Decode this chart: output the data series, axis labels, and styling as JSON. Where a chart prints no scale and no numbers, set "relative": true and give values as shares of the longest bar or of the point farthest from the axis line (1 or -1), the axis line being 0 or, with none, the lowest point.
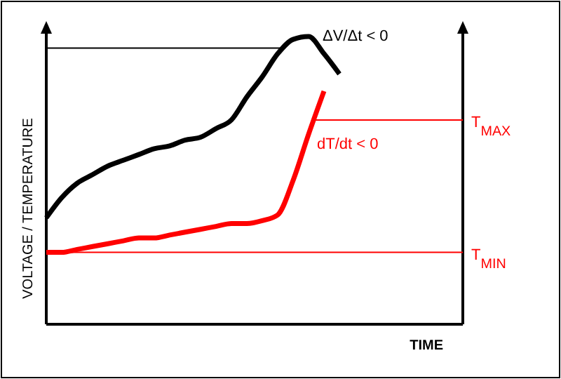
{
  "chart_data": {
    "type": "line",
    "relative": true,
    "xlabel": "TIME",
    "ylabel": "VOLTAGE / TEMPERATURE",
    "categories": [
      null,
      null,
      null,
      null,
      null,
      null,
      null,
      null,
      null,
      null,
      null,
      null,
      null,
      null,
      null,
      null,
      null,
      null,
      null,
      null,
      null,
      null,
      null,
      null,
      null,
      null,
      null,
      null
    ],
    "series": [
      {
        "color": "#000000",
        "values": [
          0.37,
          0.44,
          0.49,
          0.52,
          0.55,
          0.57,
          0.59,
          0.61,
          0.62,
          0.64,
          0.65,
          0.68,
          0.71,
          0.79,
          0.86,
          0.94,
          0.99,
          1,
          0.94,
          0.87,
          null,
          null,
          null,
          null,
          null,
          null,
          null,
          null
        ]
      },
      {
        "color": "#ff0000",
        "values": [
          0.25,
          0.25,
          0.26,
          0.27,
          0.28,
          0.29,
          0.3,
          0.3,
          0.31,
          0.32,
          0.33,
          0.34,
          0.35,
          0.35,
          0.36,
          0.38,
          0.5,
          0.66,
          0.81,
          null,
          null,
          null,
          null,
          null,
          null,
          null,
          null,
          null
        ]
      }
    ],
    "ref_lines": [
      {
        "axis": "y",
        "value": 0.96,
        "color": "#000000"
      },
      {
        "axis": "y",
        "value": 0.71,
        "label": "T$_{MAX}$",
        "color": "#ff0000"
      },
      {
        "axis": "y",
        "value": 0.25,
        "label": "T$_{MIN}$",
        "color": "#ff0000"
      }
    ],
    "annotations": [
      "ΔV/Δt < 0",
      "dT/dt < 0"
    ]
  }
}
